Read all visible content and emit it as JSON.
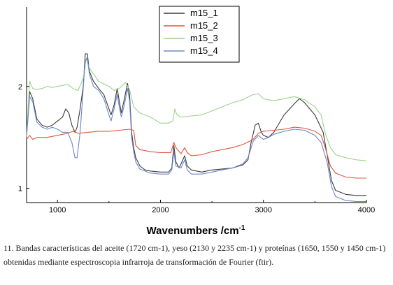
{
  "chart_data": {
    "type": "line",
    "xlabel": "Wavenumbers /cm",
    "xlabel_sup": "-1",
    "xlim": [
      700,
      4000
    ],
    "ylim": [
      0.86,
      2.78
    ],
    "x_ticks": [
      1000,
      2000,
      3000,
      4000
    ],
    "y_ticks": [
      1,
      2
    ],
    "legend_position": "top-center",
    "series": [
      {
        "name": "m15_1",
        "color": "#3a3a3a",
        "points": [
          [
            700,
            1.52
          ],
          [
            730,
            1.95
          ],
          [
            760,
            1.88
          ],
          [
            800,
            1.68
          ],
          [
            850,
            1.62
          ],
          [
            900,
            1.6
          ],
          [
            950,
            1.62
          ],
          [
            1000,
            1.66
          ],
          [
            1050,
            1.7
          ],
          [
            1080,
            1.78
          ],
          [
            1110,
            1.74
          ],
          [
            1140,
            1.62
          ],
          [
            1170,
            1.55
          ],
          [
            1190,
            1.6
          ],
          [
            1220,
            1.78
          ],
          [
            1250,
            2.0
          ],
          [
            1270,
            2.32
          ],
          [
            1290,
            2.32
          ],
          [
            1310,
            2.15
          ],
          [
            1350,
            2.05
          ],
          [
            1400,
            1.98
          ],
          [
            1450,
            1.92
          ],
          [
            1500,
            1.78
          ],
          [
            1520,
            1.72
          ],
          [
            1550,
            1.82
          ],
          [
            1580,
            1.98
          ],
          [
            1600,
            1.86
          ],
          [
            1620,
            1.74
          ],
          [
            1650,
            1.88
          ],
          [
            1680,
            2.03
          ],
          [
            1700,
            1.92
          ],
          [
            1720,
            1.55
          ],
          [
            1740,
            1.4
          ],
          [
            1760,
            1.3
          ],
          [
            1800,
            1.22
          ],
          [
            1850,
            1.18
          ],
          [
            1900,
            1.17
          ],
          [
            2000,
            1.16
          ],
          [
            2080,
            1.16
          ],
          [
            2110,
            1.2
          ],
          [
            2130,
            1.42
          ],
          [
            2150,
            1.26
          ],
          [
            2180,
            1.2
          ],
          [
            2200,
            1.24
          ],
          [
            2235,
            1.32
          ],
          [
            2260,
            1.22
          ],
          [
            2300,
            1.18
          ],
          [
            2400,
            1.16
          ],
          [
            2500,
            1.18
          ],
          [
            2600,
            1.19
          ],
          [
            2700,
            1.2
          ],
          [
            2800,
            1.23
          ],
          [
            2850,
            1.28
          ],
          [
            2880,
            1.45
          ],
          [
            2920,
            1.62
          ],
          [
            2950,
            1.64
          ],
          [
            2980,
            1.55
          ],
          [
            3000,
            1.52
          ],
          [
            3050,
            1.5
          ],
          [
            3100,
            1.55
          ],
          [
            3200,
            1.72
          ],
          [
            3300,
            1.83
          ],
          [
            3350,
            1.88
          ],
          [
            3400,
            1.84
          ],
          [
            3500,
            1.72
          ],
          [
            3580,
            1.55
          ],
          [
            3620,
            1.32
          ],
          [
            3660,
            1.08
          ],
          [
            3700,
            0.98
          ],
          [
            3800,
            0.94
          ],
          [
            3900,
            0.93
          ],
          [
            4000,
            0.93
          ]
        ]
      },
      {
        "name": "m15_2",
        "color": "#e0553c",
        "points": [
          [
            700,
            1.48
          ],
          [
            730,
            1.52
          ],
          [
            760,
            1.48
          ],
          [
            800,
            1.5
          ],
          [
            900,
            1.5
          ],
          [
            1000,
            1.52
          ],
          [
            1100,
            1.54
          ],
          [
            1150,
            1.56
          ],
          [
            1200,
            1.54
          ],
          [
            1300,
            1.55
          ],
          [
            1400,
            1.56
          ],
          [
            1500,
            1.56
          ],
          [
            1600,
            1.57
          ],
          [
            1700,
            1.58
          ],
          [
            1740,
            1.57
          ],
          [
            1760,
            1.42
          ],
          [
            1800,
            1.38
          ],
          [
            1900,
            1.36
          ],
          [
            2000,
            1.35
          ],
          [
            2100,
            1.35
          ],
          [
            2130,
            1.45
          ],
          [
            2150,
            1.4
          ],
          [
            2200,
            1.34
          ],
          [
            2235,
            1.4
          ],
          [
            2260,
            1.35
          ],
          [
            2300,
            1.32
          ],
          [
            2400,
            1.33
          ],
          [
            2500,
            1.36
          ],
          [
            2600,
            1.38
          ],
          [
            2700,
            1.4
          ],
          [
            2800,
            1.43
          ],
          [
            2900,
            1.48
          ],
          [
            2950,
            1.54
          ],
          [
            3000,
            1.56
          ],
          [
            3100,
            1.57
          ],
          [
            3200,
            1.58
          ],
          [
            3300,
            1.6
          ],
          [
            3400,
            1.59
          ],
          [
            3500,
            1.56
          ],
          [
            3560,
            1.52
          ],
          [
            3600,
            1.4
          ],
          [
            3650,
            1.22
          ],
          [
            3700,
            1.15
          ],
          [
            3800,
            1.11
          ],
          [
            3900,
            1.1
          ],
          [
            4000,
            1.1
          ]
        ]
      },
      {
        "name": "m15_3",
        "color": "#98d68a",
        "points": [
          [
            700,
            1.52
          ],
          [
            730,
            2.05
          ],
          [
            760,
            1.98
          ],
          [
            800,
            1.97
          ],
          [
            850,
            1.98
          ],
          [
            900,
            2.0
          ],
          [
            950,
            1.99
          ],
          [
            1000,
            2.0
          ],
          [
            1100,
            2.02
          ],
          [
            1150,
            1.98
          ],
          [
            1200,
            1.96
          ],
          [
            1250,
            2.08
          ],
          [
            1280,
            2.28
          ],
          [
            1310,
            2.18
          ],
          [
            1400,
            2.05
          ],
          [
            1500,
            2.0
          ],
          [
            1550,
            1.96
          ],
          [
            1600,
            1.98
          ],
          [
            1660,
            2.04
          ],
          [
            1700,
            1.97
          ],
          [
            1740,
            1.8
          ],
          [
            1800,
            1.74
          ],
          [
            1900,
            1.7
          ],
          [
            2000,
            1.64
          ],
          [
            2080,
            1.64
          ],
          [
            2120,
            1.66
          ],
          [
            2140,
            1.78
          ],
          [
            2160,
            1.72
          ],
          [
            2200,
            1.7
          ],
          [
            2300,
            1.71
          ],
          [
            2400,
            1.72
          ],
          [
            2500,
            1.76
          ],
          [
            2600,
            1.8
          ],
          [
            2700,
            1.84
          ],
          [
            2800,
            1.87
          ],
          [
            2900,
            1.92
          ],
          [
            2950,
            1.93
          ],
          [
            3000,
            1.88
          ],
          [
            3100,
            1.86
          ],
          [
            3200,
            1.88
          ],
          [
            3300,
            1.9
          ],
          [
            3400,
            1.87
          ],
          [
            3500,
            1.8
          ],
          [
            3560,
            1.72
          ],
          [
            3600,
            1.54
          ],
          [
            3650,
            1.4
          ],
          [
            3700,
            1.33
          ],
          [
            3800,
            1.3
          ],
          [
            3900,
            1.28
          ],
          [
            4000,
            1.27
          ]
        ]
      },
      {
        "name": "m15_4",
        "color": "#6d86c9",
        "points": [
          [
            700,
            1.5
          ],
          [
            730,
            1.9
          ],
          [
            760,
            1.85
          ],
          [
            800,
            1.65
          ],
          [
            850,
            1.6
          ],
          [
            900,
            1.58
          ],
          [
            950,
            1.6
          ],
          [
            1000,
            1.58
          ],
          [
            1050,
            1.55
          ],
          [
            1100,
            1.55
          ],
          [
            1140,
            1.45
          ],
          [
            1170,
            1.3
          ],
          [
            1190,
            1.3
          ],
          [
            1220,
            1.55
          ],
          [
            1250,
            1.98
          ],
          [
            1270,
            2.25
          ],
          [
            1290,
            2.28
          ],
          [
            1310,
            2.12
          ],
          [
            1350,
            2.0
          ],
          [
            1400,
            1.96
          ],
          [
            1450,
            1.88
          ],
          [
            1500,
            1.72
          ],
          [
            1520,
            1.66
          ],
          [
            1550,
            1.78
          ],
          [
            1580,
            1.92
          ],
          [
            1600,
            1.8
          ],
          [
            1620,
            1.7
          ],
          [
            1650,
            1.82
          ],
          [
            1680,
            1.98
          ],
          [
            1700,
            1.86
          ],
          [
            1720,
            1.5
          ],
          [
            1740,
            1.36
          ],
          [
            1760,
            1.26
          ],
          [
            1800,
            1.19
          ],
          [
            1900,
            1.15
          ],
          [
            2000,
            1.14
          ],
          [
            2080,
            1.14
          ],
          [
            2110,
            1.18
          ],
          [
            2130,
            1.36
          ],
          [
            2150,
            1.22
          ],
          [
            2200,
            1.2
          ],
          [
            2235,
            1.28
          ],
          [
            2260,
            1.18
          ],
          [
            2300,
            1.14
          ],
          [
            2400,
            1.14
          ],
          [
            2500,
            1.16
          ],
          [
            2600,
            1.18
          ],
          [
            2700,
            1.2
          ],
          [
            2800,
            1.24
          ],
          [
            2850,
            1.3
          ],
          [
            2900,
            1.46
          ],
          [
            2950,
            1.52
          ],
          [
            3000,
            1.48
          ],
          [
            3050,
            1.5
          ],
          [
            3100,
            1.53
          ],
          [
            3200,
            1.56
          ],
          [
            3300,
            1.58
          ],
          [
            3400,
            1.57
          ],
          [
            3500,
            1.52
          ],
          [
            3560,
            1.45
          ],
          [
            3620,
            1.25
          ],
          [
            3660,
            1.02
          ],
          [
            3700,
            0.92
          ],
          [
            3800,
            0.88
          ],
          [
            3900,
            0.87
          ],
          [
            4000,
            0.87
          ]
        ]
      }
    ]
  },
  "caption": "11. Bandas características del aceite (1720 cm-1), yeso (2130 y 2235 cm-1) y proteínas (1650, 1550 y 1450 cm-1) obtenidas mediante espectroscopia infrarroja de transformación de Fourier (ftir)."
}
